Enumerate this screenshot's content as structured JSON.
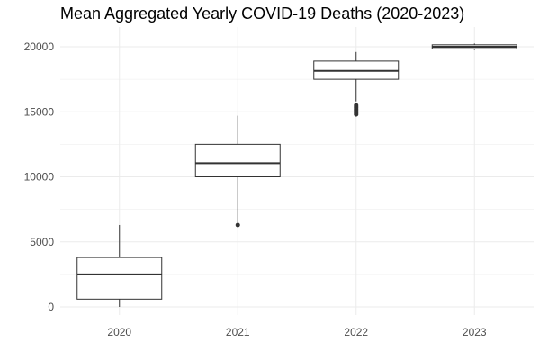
{
  "chart_data": {
    "type": "boxplot",
    "title": "Mean Aggregated Yearly COVID-19 Deaths (2020-2023)",
    "xlabel": "",
    "ylabel": "",
    "categories": [
      "2020",
      "2021",
      "2022",
      "2023"
    ],
    "y_ticks": [
      0,
      5000,
      10000,
      15000,
      20000
    ],
    "ylim": [
      -300,
      21200
    ],
    "grid": true,
    "boxes": [
      {
        "category": "2020",
        "whisker_low": 0,
        "q1": 600,
        "median": 2500,
        "q3": 3800,
        "whisker_high": 6300,
        "outliers": []
      },
      {
        "category": "2021",
        "whisker_low": 6500,
        "q1": 10000,
        "median": 11050,
        "q3": 12500,
        "whisker_high": 14700,
        "outliers": [
          6300
        ]
      },
      {
        "category": "2022",
        "whisker_low": 15800,
        "q1": 17500,
        "median": 18150,
        "q3": 18900,
        "whisker_high": 19600,
        "outliers": [
          14800,
          14900,
          15000,
          15100,
          15200,
          15300,
          15400,
          15500
        ]
      },
      {
        "category": "2023",
        "whisker_low": 19750,
        "q1": 19850,
        "median": 20000,
        "q3": 20150,
        "whisker_high": 20250,
        "outliers": []
      }
    ],
    "colors": {
      "box_fill": "#ffffff",
      "box_line": "#333333",
      "grid": "#ebebeb"
    }
  }
}
